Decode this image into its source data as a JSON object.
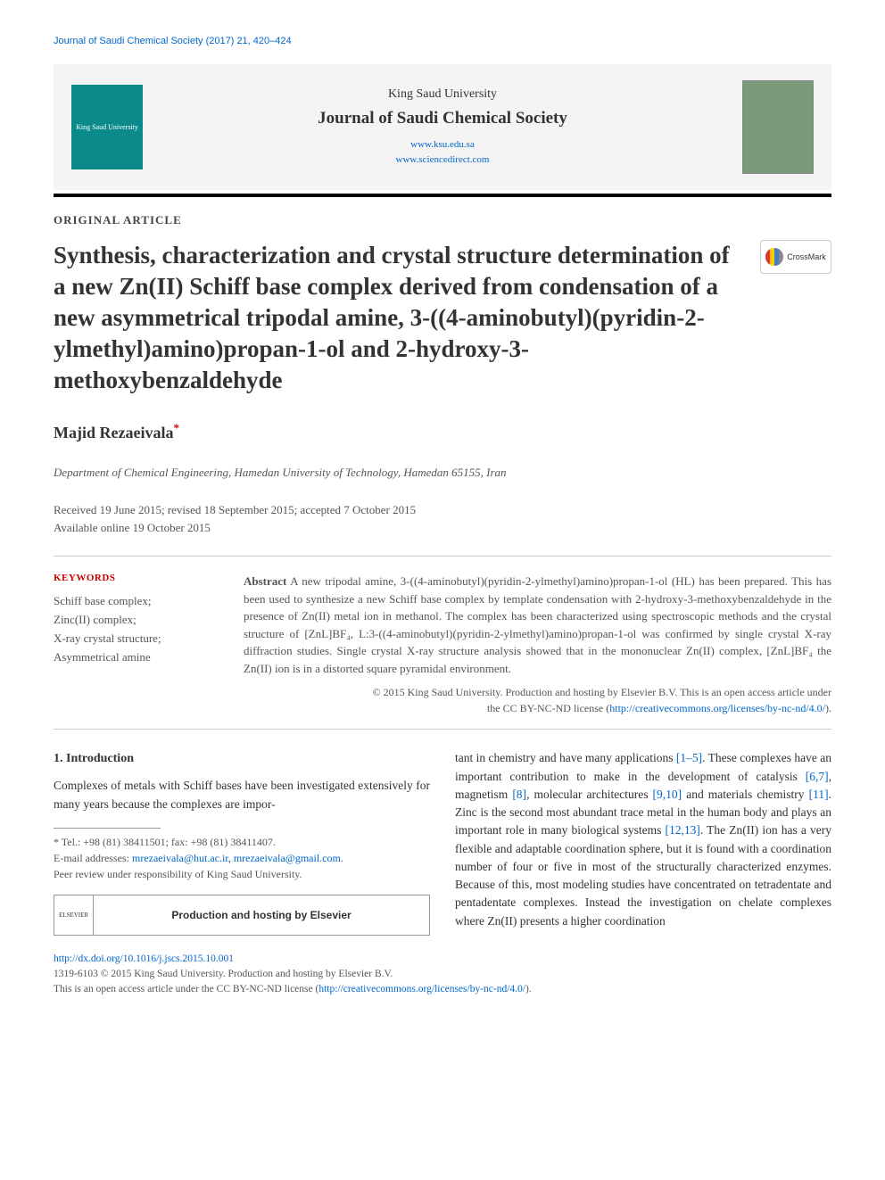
{
  "running_header": "Journal of Saudi Chemical Society (2017) 21, 420–424",
  "masthead": {
    "logo_text": "King Saud University",
    "subheading": "King Saud University",
    "journal_name": "Journal of Saudi Chemical Society",
    "url1": "www.ksu.edu.sa",
    "url2": "www.sciencedirect.com",
    "cover_label": "Journal of Saudi Chemical Society"
  },
  "crossmark_label": "CrossMark",
  "article_type": "ORIGINAL ARTICLE",
  "title": "Synthesis, characterization and crystal structure determination of a new Zn(II) Schiff base complex derived from condensation of a new asymmetrical tripodal amine, 3-((4-aminobutyl)(pyridin-2-ylmethyl)amino)propan-1-ol and 2-hydroxy-3-methoxybenzaldehyde",
  "author": {
    "name": "Majid Rezaeivala",
    "marker": "*"
  },
  "affiliation": "Department of Chemical Engineering, Hamedan University of Technology, Hamedan 65155, Iran",
  "dates": {
    "line1": "Received 19 June 2015; revised 18 September 2015; accepted 7 October 2015",
    "line2": "Available online 19 October 2015"
  },
  "keywords": {
    "heading": "KEYWORDS",
    "items": [
      "Schiff base complex;",
      "Zinc(II) complex;",
      "X-ray crystal structure;",
      "Asymmetrical amine"
    ]
  },
  "abstract": {
    "label": "Abstract",
    "text": "  A new tripodal amine, 3-((4-aminobutyl)(pyridin-2-ylmethyl)amino)propan-1-ol (HL) has been prepared. This has been used to synthesize a new Schiff base complex by template condensation with 2-hydroxy-3-methoxybenzaldehyde in the presence of Zn(II) metal ion in methanol. The complex has been characterized using spectroscopic methods and the crystal structure of [ZnL]BF₄, L:3-((4-aminobutyl)(pyridin-2-ylmethyl)amino)propan-1-ol was confirmed by single crystal X-ray diffraction studies. Single crystal X-ray structure analysis showed that in the mononuclear Zn(II) complex, [ZnL]BF₄ the Zn(II) ion is in a distorted square pyramidal environment.",
    "copyright_line1": "© 2015 King Saud University. Production and hosting by Elsevier B.V. This is an open access article under",
    "copyright_line2_prefix": "the CC BY-NC-ND license (",
    "copyright_url": "http://creativecommons.org/licenses/by-nc-nd/4.0/",
    "copyright_line2_suffix": ")."
  },
  "introduction": {
    "heading": "1. Introduction",
    "col1_para": "Complexes of metals with Schiff bases have been investigated extensively for many years because the complexes are impor-",
    "col2_text_parts": [
      "tant in chemistry and have many applications ",
      {
        "ref": "[1–5]"
      },
      ". These complexes have an important contribution to make in the development of catalysis ",
      {
        "ref": "[6,7]"
      },
      ", magnetism ",
      {
        "ref": "[8]"
      },
      ", molecular architectures ",
      {
        "ref": "[9,10]"
      },
      " and materials chemistry ",
      {
        "ref": "[11]"
      },
      ". Zinc is the second most abundant trace metal in the human body and plays an important role in many biological systems ",
      {
        "ref": "[12,13]"
      },
      ". The Zn(II) ion has a very flexible and adaptable coordination sphere, but it is found with a coordination number of four or five in most of the structurally characterized enzymes. Because of this, most modeling studies have concentrated on tetradentate and pentadentate complexes. Instead the investigation on chelate complexes where Zn(II) presents a higher coordination"
    ]
  },
  "footnotes": {
    "tel_label": "* Tel.: +98 (81) 38411501; fax: +98 (81) 38411407.",
    "email_label": "E-mail addresses: ",
    "email1": "mrezaeivala@hut.ac.ir",
    "email_sep": ", ",
    "email2": "mrezaeivala@gmail.com",
    "email_suffix": ".",
    "peer_review": "Peer review under responsibility of King Saud University."
  },
  "hosting_box": {
    "logo_text": "ELSEVIER",
    "text": "Production and hosting by Elsevier"
  },
  "page_footer": {
    "doi": "http://dx.doi.org/10.1016/j.jscs.2015.10.001",
    "line2": "1319-6103 © 2015 King Saud University. Production and hosting by Elsevier B.V.",
    "line3_prefix": "This is an open access article under the CC BY-NC-ND license (",
    "line3_url": "http://creativecommons.org/licenses/by-nc-nd/4.0/",
    "line3_suffix": ")."
  },
  "colors": {
    "link": "#0066cc",
    "keyword_heading": "#cc0000",
    "author_marker": "#cc0000",
    "text": "#333333",
    "muted_text": "#555555",
    "masthead_bg": "#f4f4f4",
    "logo_bg": "#0a8a8a",
    "cover_bg": "#7a9a7a",
    "rule_black": "#000000",
    "rule_light": "#cccccc"
  },
  "typography": {
    "title_fontsize_pt": 20,
    "author_fontsize_pt": 14,
    "body_fontsize_pt": 10,
    "small_fontsize_pt": 9
  }
}
